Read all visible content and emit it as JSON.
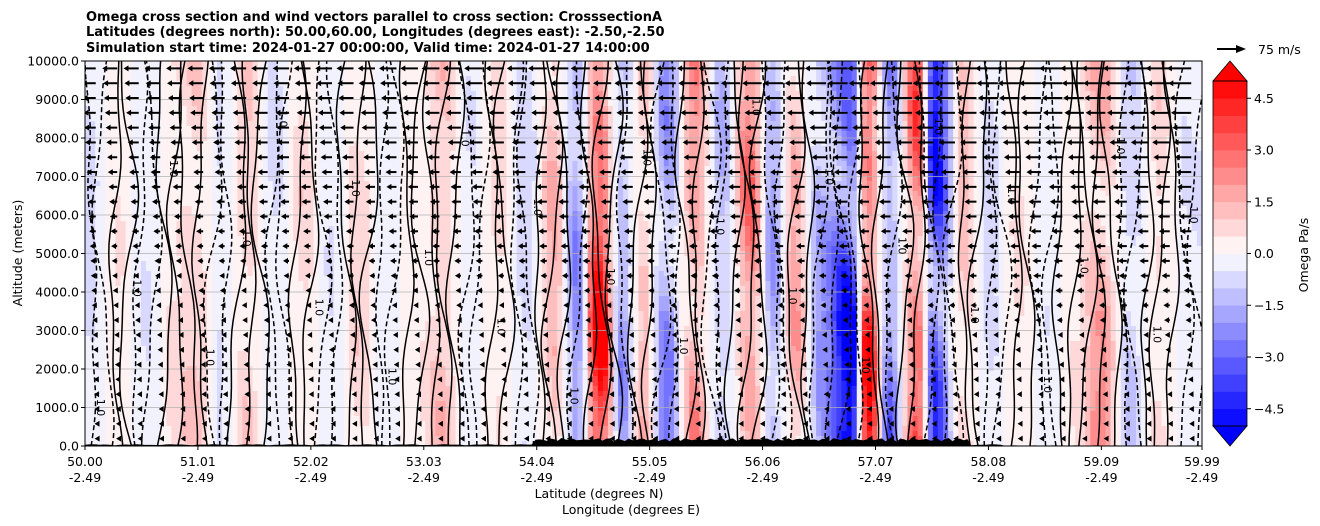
{
  "chart_data": {
    "type": "heatmap",
    "title_lines": [
      "Omega cross section and wind vectors parallel to cross section: CrosssectionA",
      "Latitudes (degrees north): 50.00,60.00, Longitudes (degrees east): -2.50,-2.50",
      "Simulation start time: 2024-01-27 00:00:00, Valid time: 2024-01-27 14:00:00"
    ],
    "xlabel": "Latitude (degrees N)",
    "xlabel2": "Longitude (degrees E)",
    "ylabel": "Altitude (meters)",
    "xlim": [
      50.0,
      59.99
    ],
    "ylim": [
      0,
      10000
    ],
    "x_ticks": [
      {
        "lat": "50.00",
        "lon": "-2.49"
      },
      {
        "lat": "51.01",
        "lon": "-2.49"
      },
      {
        "lat": "52.02",
        "lon": "-2.49"
      },
      {
        "lat": "53.03",
        "lon": "-2.49"
      },
      {
        "lat": "54.04",
        "lon": "-2.49"
      },
      {
        "lat": "55.05",
        "lon": "-2.49"
      },
      {
        "lat": "56.06",
        "lon": "-2.49"
      },
      {
        "lat": "57.07",
        "lon": "-2.49"
      },
      {
        "lat": "58.08",
        "lon": "-2.49"
      },
      {
        "lat": "59.09",
        "lon": "-2.49"
      },
      {
        "lat": "59.99",
        "lon": "-2.49"
      }
    ],
    "y_ticks": [
      "0.0",
      "1000.0",
      "2000.0",
      "3000.0",
      "4000.0",
      "5000.0",
      "6000.0",
      "7000.0",
      "8000.0",
      "9000.0",
      "10000.0"
    ],
    "y_grid": true,
    "colorbar": {
      "label": "Omega Pa/s",
      "min": -5.0,
      "max": 5.0,
      "levels": 20,
      "extend": "both",
      "colormap": "bwr",
      "ticks": [
        "4.5",
        "3.0",
        "1.5",
        "0.0",
        "−1.5",
        "−3.0",
        "−4.5"
      ]
    },
    "quiver_key": {
      "label": "75 m/s",
      "value": 75
    },
    "contour_label": "1.0",
    "colors": {
      "positive": "#ff0000",
      "negative": "#0000ff",
      "zero": "#ffffff",
      "terrain": "#000000"
    },
    "omega_column_profile": [
      {
        "lat": 50.05,
        "v": -0.6
      },
      {
        "lat": 50.3,
        "v": 0.5
      },
      {
        "lat": 50.55,
        "v": -0.5
      },
      {
        "lat": 50.8,
        "v": 0.7
      },
      {
        "lat": 51.0,
        "v": 1.2
      },
      {
        "lat": 51.2,
        "v": -0.6
      },
      {
        "lat": 51.45,
        "v": 1.1
      },
      {
        "lat": 51.7,
        "v": -0.7
      },
      {
        "lat": 51.95,
        "v": 0.8
      },
      {
        "lat": 52.2,
        "v": -0.5
      },
      {
        "lat": 52.45,
        "v": 0.9
      },
      {
        "lat": 52.7,
        "v": -0.4
      },
      {
        "lat": 52.95,
        "v": 0.3
      },
      {
        "lat": 53.2,
        "v": 1.3
      },
      {
        "lat": 53.45,
        "v": -0.5
      },
      {
        "lat": 53.7,
        "v": 0.7
      },
      {
        "lat": 53.95,
        "v": -0.9
      },
      {
        "lat": 54.2,
        "v": 1.6
      },
      {
        "lat": 54.4,
        "v": -2.2
      },
      {
        "lat": 54.6,
        "v": 4.8
      },
      {
        "lat": 54.8,
        "v": -1.8
      },
      {
        "lat": 55.0,
        "v": 1.4
      },
      {
        "lat": 55.2,
        "v": -2.6
      },
      {
        "lat": 55.45,
        "v": 2.2
      },
      {
        "lat": 55.7,
        "v": -1.5
      },
      {
        "lat": 55.95,
        "v": 2.8
      },
      {
        "lat": 56.15,
        "v": -1.9
      },
      {
        "lat": 56.35,
        "v": 1.8
      },
      {
        "lat": 56.6,
        "v": -2.1
      },
      {
        "lat": 56.85,
        "v": -4.9
      },
      {
        "lat": 57.0,
        "v": 4.2
      },
      {
        "lat": 57.2,
        "v": -2.4
      },
      {
        "lat": 57.45,
        "v": 3.6
      },
      {
        "lat": 57.6,
        "v": -4.8
      },
      {
        "lat": 57.85,
        "v": 1.2
      },
      {
        "lat": 58.1,
        "v": -0.8
      },
      {
        "lat": 58.35,
        "v": 0.6
      },
      {
        "lat": 58.6,
        "v": -0.4
      },
      {
        "lat": 58.85,
        "v": 0.5
      },
      {
        "lat": 59.1,
        "v": 2.0
      },
      {
        "lat": 59.35,
        "v": -1.2
      },
      {
        "lat": 59.6,
        "v": 0.8
      },
      {
        "lat": 59.85,
        "v": -0.5
      }
    ]
  }
}
